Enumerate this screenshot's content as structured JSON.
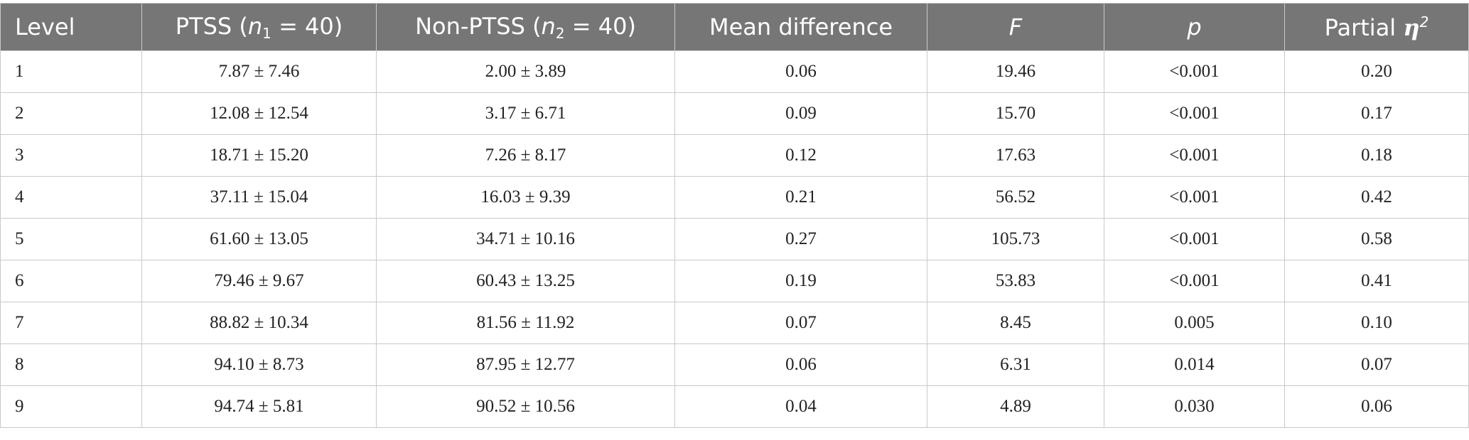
{
  "table": {
    "header": [
      {
        "text": "Level"
      },
      {
        "prefix": "PTSS (",
        "italic": "n",
        "subscript": "1",
        "suffix": " = 40)"
      },
      {
        "prefix": "Non-PTSS (",
        "italic": "n",
        "subscript": "2",
        "suffix": " = 40)"
      },
      {
        "text": "Mean difference"
      },
      {
        "italic": "F"
      },
      {
        "italic": "p"
      },
      {
        "prefix": "Partial ",
        "italic": "η",
        "superscript": "2"
      }
    ],
    "rows": [
      [
        "1",
        "7.87 ± 7.46",
        "2.00 ± 3.89",
        "0.06",
        "19.46",
        "<0.001",
        "0.20"
      ],
      [
        "2",
        "12.08 ± 12.54",
        "3.17 ± 6.71",
        "0.09",
        "15.70",
        "<0.001",
        "0.17"
      ],
      [
        "3",
        "18.71 ± 15.20",
        "7.26 ± 8.17",
        "0.12",
        "17.63",
        "<0.001",
        "0.18"
      ],
      [
        "4",
        "37.11 ± 15.04",
        "16.03 ± 9.39",
        "0.21",
        "56.52",
        "<0.001",
        "0.42"
      ],
      [
        "5",
        "61.60 ± 13.05",
        "34.71 ± 10.16",
        "0.27",
        "105.73",
        "<0.001",
        "0.58"
      ],
      [
        "6",
        "79.46 ± 9.67",
        "60.43 ± 13.25",
        "0.19",
        "53.83",
        "<0.001",
        "0.41"
      ],
      [
        "7",
        "88.82 ± 10.34",
        "81.56 ± 11.92",
        "0.07",
        "8.45",
        "0.005",
        "0.10"
      ],
      [
        "8",
        "94.10 ± 8.73",
        "87.95 ± 12.77",
        "0.06",
        "6.31",
        "0.014",
        "0.07"
      ],
      [
        "9",
        "94.74 ± 5.81",
        "90.52 ± 10.56",
        "0.04",
        "4.89",
        "0.030",
        "0.06"
      ]
    ]
  }
}
